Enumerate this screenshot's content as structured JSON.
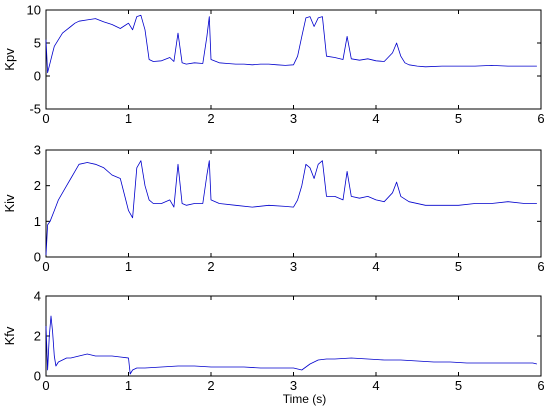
{
  "chart_data": [
    {
      "type": "line",
      "ylabel": "Kpv",
      "xlabel": "",
      "xlim": [
        0,
        6
      ],
      "ylim": [
        -5,
        10
      ],
      "xticks": [
        "0",
        "1",
        "2",
        "3",
        "4",
        "5",
        "6"
      ],
      "yticks": [
        "-5",
        "0",
        "5",
        "10"
      ],
      "grid": false,
      "series": [
        {
          "color": "#0000cc",
          "x": [
            0,
            0.02,
            0.05,
            0.08,
            0.1,
            0.15,
            0.2,
            0.25,
            0.3,
            0.35,
            0.4,
            0.5,
            0.6,
            0.7,
            0.8,
            0.9,
            1.0,
            1.05,
            1.1,
            1.15,
            1.2,
            1.25,
            1.3,
            1.4,
            1.5,
            1.55,
            1.6,
            1.65,
            1.7,
            1.8,
            1.9,
            1.95,
            1.98,
            2.0,
            2.1,
            2.2,
            2.3,
            2.4,
            2.5,
            2.6,
            2.7,
            2.8,
            2.9,
            3.0,
            3.05,
            3.1,
            3.15,
            3.2,
            3.25,
            3.3,
            3.35,
            3.4,
            3.5,
            3.6,
            3.65,
            3.7,
            3.8,
            3.9,
            4.0,
            4.1,
            4.2,
            4.25,
            4.3,
            4.35,
            4.4,
            4.5,
            4.6,
            4.8,
            5.0,
            5.2,
            5.4,
            5.6,
            5.8,
            5.95
          ],
          "y": [
            5.5,
            0.5,
            2.0,
            3.5,
            4.5,
            5.5,
            6.5,
            7.0,
            7.5,
            8.0,
            8.3,
            8.5,
            8.7,
            8.2,
            7.8,
            7.2,
            8.0,
            7.0,
            9.0,
            9.2,
            7.0,
            2.5,
            2.2,
            2.3,
            2.8,
            2.2,
            6.5,
            2.0,
            1.8,
            2.0,
            1.9,
            6.0,
            9.0,
            2.5,
            2.0,
            1.9,
            1.8,
            1.8,
            1.7,
            1.8,
            1.8,
            1.7,
            1.6,
            1.7,
            3.0,
            6.0,
            8.8,
            9.0,
            7.5,
            8.8,
            9.0,
            3.0,
            2.8,
            2.5,
            6.0,
            2.6,
            2.4,
            2.6,
            2.3,
            2.2,
            3.5,
            5.0,
            3.0,
            2.0,
            1.7,
            1.5,
            1.4,
            1.5,
            1.5,
            1.5,
            1.6,
            1.5,
            1.5,
            1.5
          ]
        }
      ]
    },
    {
      "type": "line",
      "ylabel": "Kiv",
      "xlabel": "",
      "xlim": [
        0,
        6
      ],
      "ylim": [
        0,
        3
      ],
      "xticks": [
        "0",
        "1",
        "2",
        "3",
        "4",
        "5",
        "6"
      ],
      "yticks": [
        "0",
        "1",
        "2",
        "3"
      ],
      "grid": false,
      "series": [
        {
          "color": "#0000cc",
          "x": [
            0,
            0.02,
            0.05,
            0.1,
            0.15,
            0.2,
            0.25,
            0.3,
            0.35,
            0.4,
            0.5,
            0.6,
            0.7,
            0.8,
            0.9,
            1.0,
            1.05,
            1.1,
            1.15,
            1.2,
            1.25,
            1.3,
            1.4,
            1.5,
            1.55,
            1.6,
            1.65,
            1.7,
            1.8,
            1.9,
            1.95,
            1.98,
            2.0,
            2.1,
            2.3,
            2.5,
            2.7,
            2.9,
            3.0,
            3.05,
            3.1,
            3.15,
            3.2,
            3.25,
            3.3,
            3.35,
            3.4,
            3.5,
            3.6,
            3.65,
            3.7,
            3.8,
            3.9,
            4.0,
            4.1,
            4.2,
            4.25,
            4.3,
            4.4,
            4.6,
            4.8,
            5.0,
            5.2,
            5.4,
            5.6,
            5.8,
            5.95
          ],
          "y": [
            0.05,
            0.9,
            1.0,
            1.3,
            1.6,
            1.8,
            2.0,
            2.2,
            2.4,
            2.6,
            2.65,
            2.6,
            2.5,
            2.3,
            2.2,
            1.3,
            1.1,
            2.5,
            2.7,
            2.0,
            1.6,
            1.5,
            1.5,
            1.6,
            1.4,
            2.6,
            1.5,
            1.45,
            1.5,
            1.5,
            2.3,
            2.7,
            1.6,
            1.5,
            1.45,
            1.4,
            1.45,
            1.42,
            1.4,
            1.6,
            2.0,
            2.6,
            2.5,
            2.2,
            2.6,
            2.7,
            1.7,
            1.7,
            1.6,
            2.4,
            1.7,
            1.65,
            1.7,
            1.6,
            1.55,
            1.8,
            2.1,
            1.7,
            1.55,
            1.45,
            1.45,
            1.45,
            1.5,
            1.5,
            1.55,
            1.5,
            1.5
          ]
        }
      ]
    },
    {
      "type": "line",
      "ylabel": "Kfv",
      "xlabel": "Time (s)",
      "xlim": [
        0,
        6
      ],
      "ylim": [
        0,
        4
      ],
      "xticks": [
        "0",
        "1",
        "2",
        "3",
        "4",
        "5",
        "6"
      ],
      "yticks": [
        "0",
        "2",
        "4"
      ],
      "grid": false,
      "series": [
        {
          "color": "#0000cc",
          "x": [
            0,
            0.02,
            0.04,
            0.06,
            0.08,
            0.1,
            0.12,
            0.15,
            0.2,
            0.25,
            0.3,
            0.4,
            0.5,
            0.6,
            0.7,
            0.8,
            0.9,
            1.0,
            1.02,
            1.05,
            1.1,
            1.2,
            1.4,
            1.6,
            1.8,
            2.0,
            2.2,
            2.4,
            2.6,
            2.8,
            3.0,
            3.1,
            3.2,
            3.3,
            3.4,
            3.5,
            3.7,
            3.9,
            4.1,
            4.3,
            4.5,
            4.7,
            4.9,
            5.1,
            5.3,
            5.5,
            5.7,
            5.9,
            5.95
          ],
          "y": [
            2.5,
            0.3,
            2.0,
            3.0,
            2.2,
            1.0,
            0.5,
            0.7,
            0.8,
            0.9,
            0.9,
            1.0,
            1.1,
            1.0,
            1.0,
            1.0,
            0.95,
            0.9,
            0.1,
            0.3,
            0.4,
            0.4,
            0.45,
            0.5,
            0.5,
            0.45,
            0.45,
            0.45,
            0.4,
            0.4,
            0.4,
            0.3,
            0.6,
            0.8,
            0.85,
            0.85,
            0.9,
            0.85,
            0.8,
            0.8,
            0.75,
            0.7,
            0.7,
            0.65,
            0.65,
            0.65,
            0.65,
            0.65,
            0.6
          ]
        }
      ]
    }
  ]
}
